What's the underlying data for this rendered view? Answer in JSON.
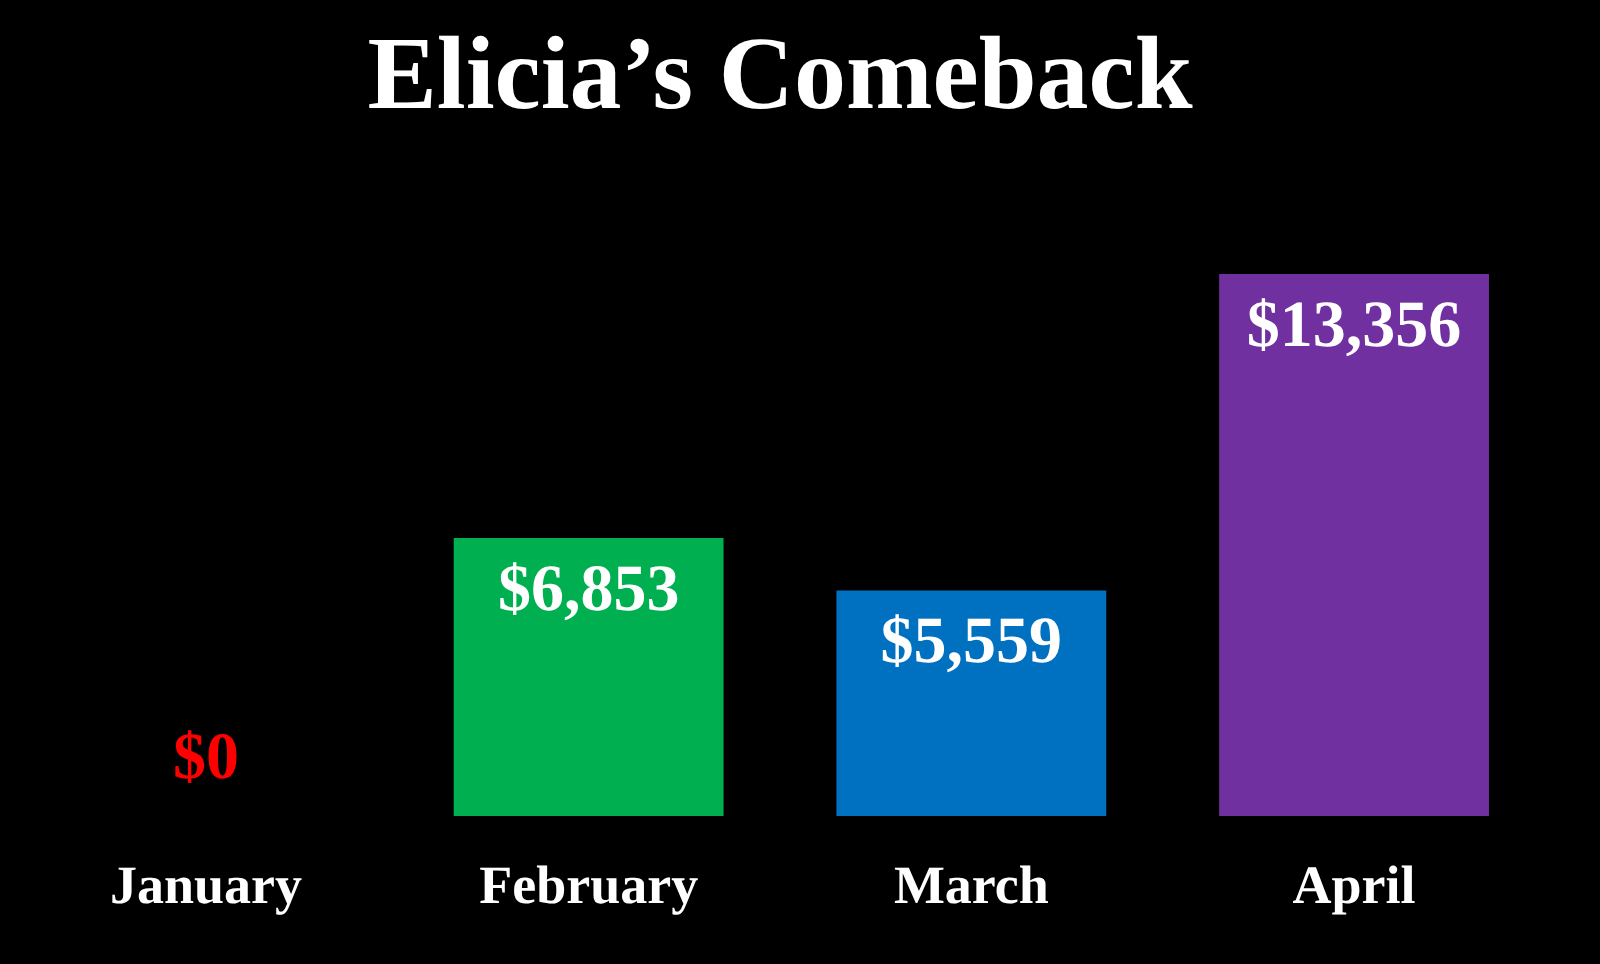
{
  "chart_data": {
    "type": "bar",
    "title": "Elicia’s Comeback",
    "categories": [
      "January",
      "February",
      "March",
      "April"
    ],
    "values": [
      0,
      6853,
      5559,
      13356
    ],
    "colors": [
      "#ff0000",
      "#00b050",
      "#0070c0",
      "#7030a0"
    ],
    "value_labels": [
      "$0",
      "$6,853",
      "$5,559",
      "$13,356"
    ]
  }
}
